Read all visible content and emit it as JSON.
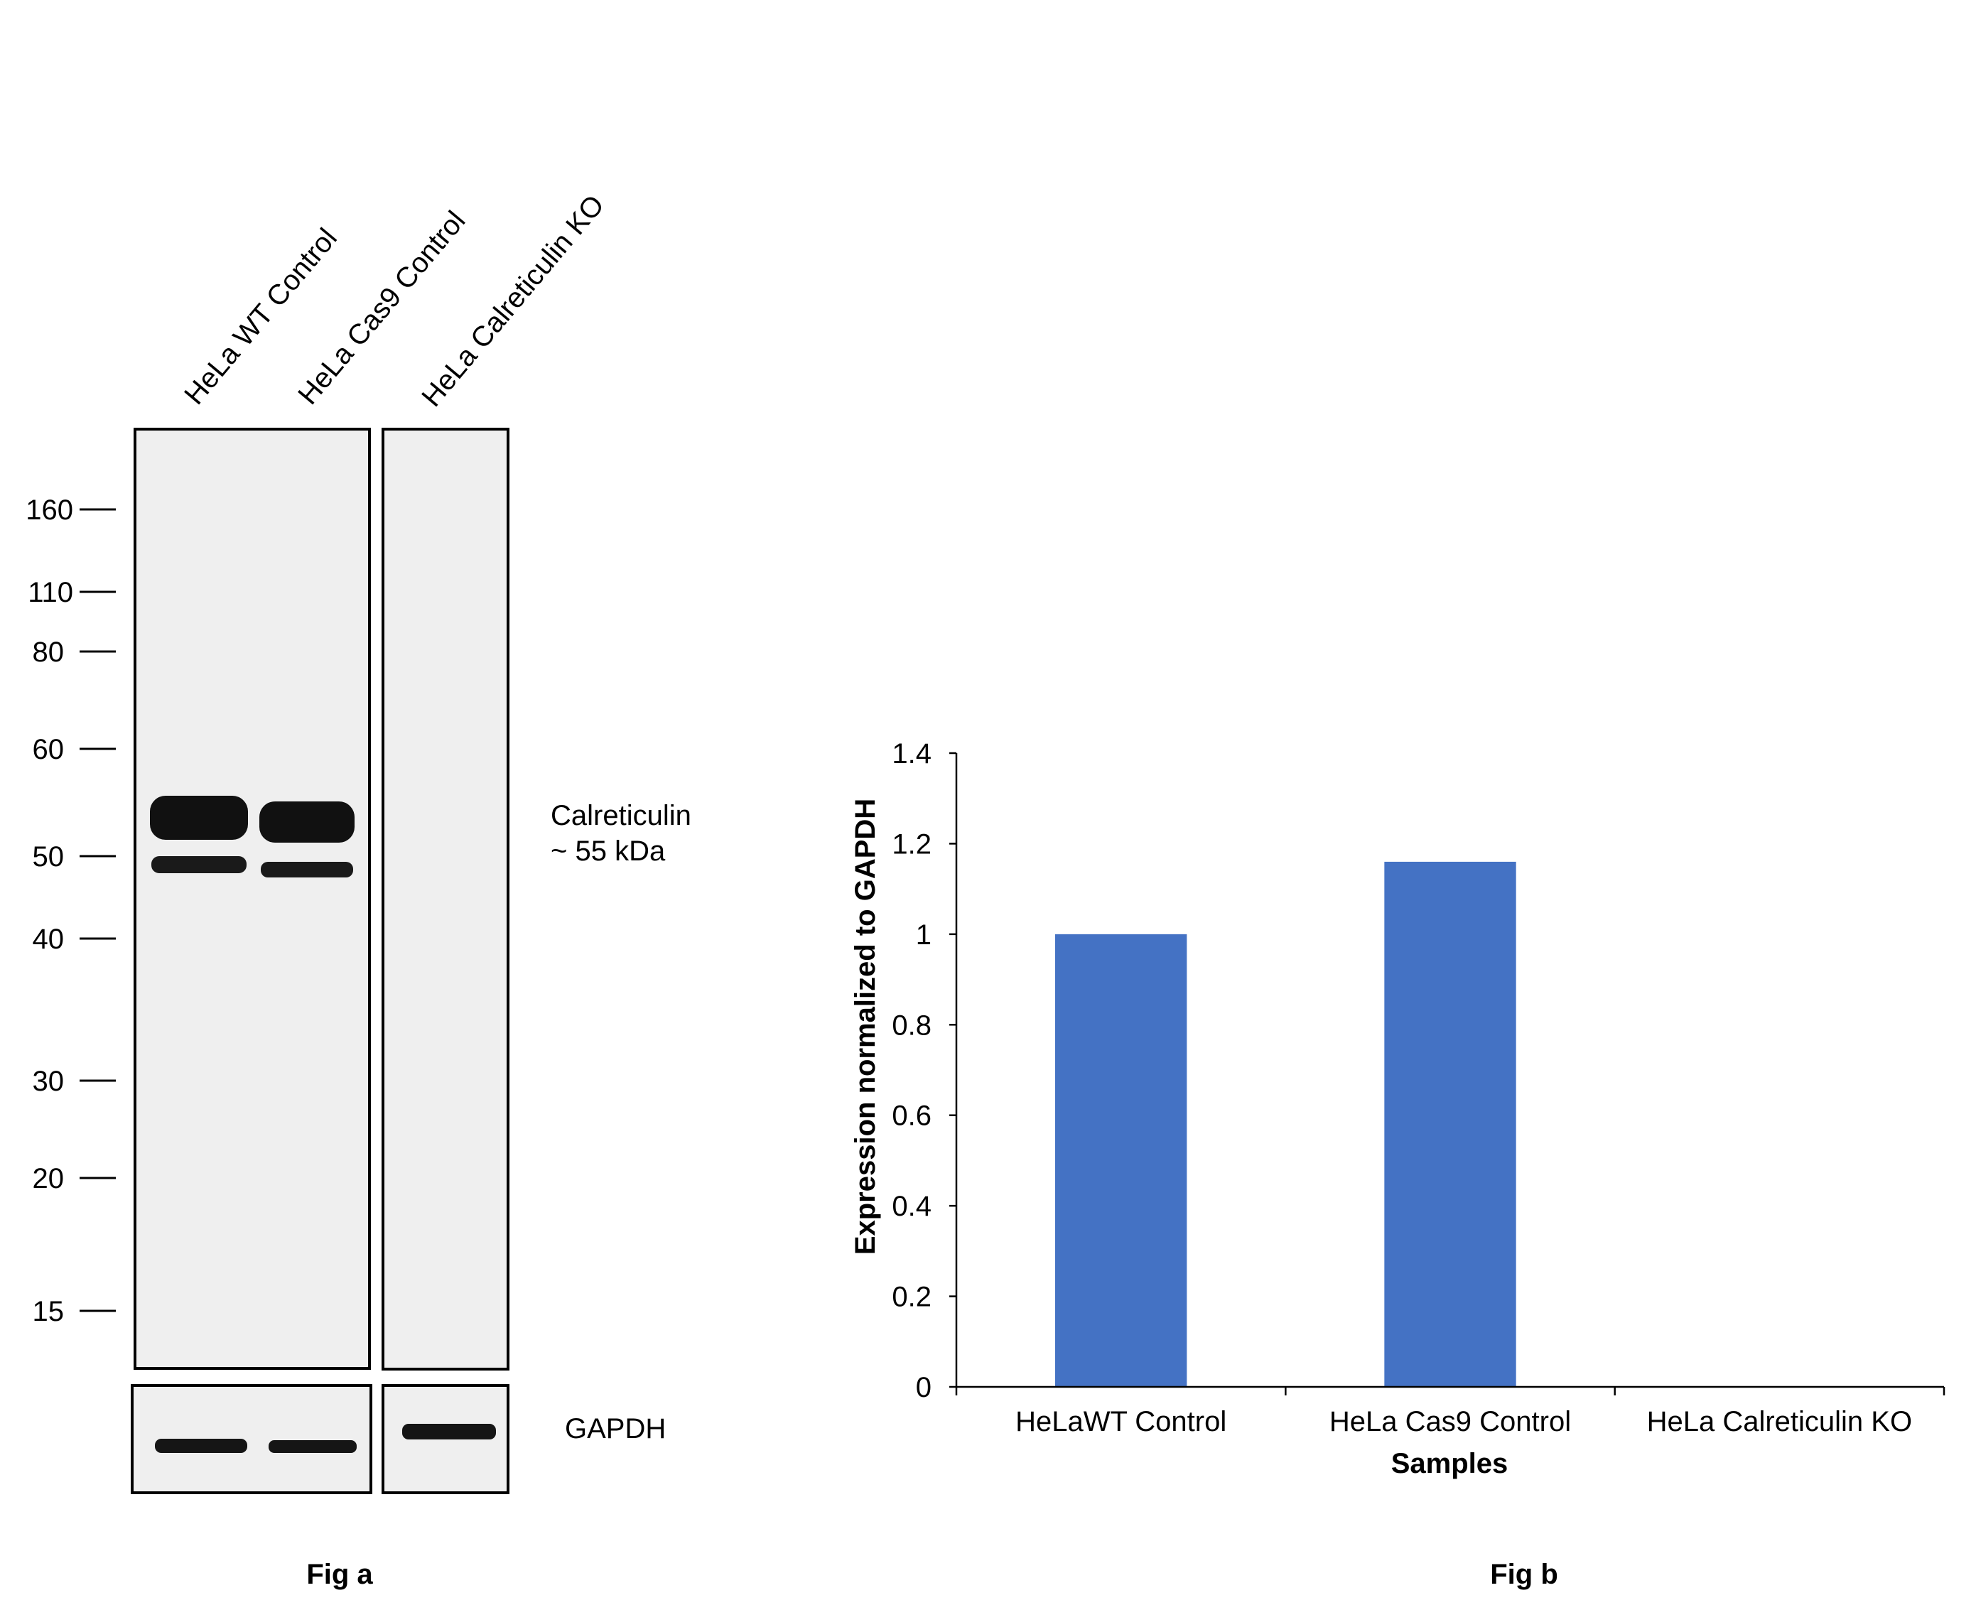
{
  "western_blot": {
    "lane_labels": [
      "HeLa WT Control",
      "HeLa Cas9 Control",
      "HeLa Calreticulin KO"
    ],
    "mw_markers": [
      "160",
      "110",
      "80",
      "60",
      "50",
      "40",
      "30",
      "20",
      "15"
    ],
    "band_label_line1": "Calreticulin",
    "band_label_line2": "~ 55 kDa",
    "loading_control_label": "GAPDH",
    "caption": "Fig a",
    "colors": {
      "membrane": "#efefef",
      "frame": "#000000",
      "band": "#111111"
    }
  },
  "chart_data": {
    "type": "bar",
    "categories": [
      "HeLaWT Control",
      "HeLa Cas9 Control",
      "HeLa Calreticulin KO"
    ],
    "values": [
      1.0,
      1.16,
      0
    ],
    "xlabel": "Samples",
    "ylabel": "Expression normalized to GAPDH",
    "ylim": [
      0,
      1.4
    ],
    "yticks": [
      0,
      0.2,
      0.4,
      0.6,
      0.8,
      1,
      1.2,
      1.4
    ],
    "ytick_labels": [
      "0",
      "0.2",
      "0.4",
      "0.6",
      "0.8",
      "1",
      "1.2",
      "1.4"
    ],
    "grid": false,
    "bar_color": "#4472C4",
    "caption": "Fig b"
  }
}
